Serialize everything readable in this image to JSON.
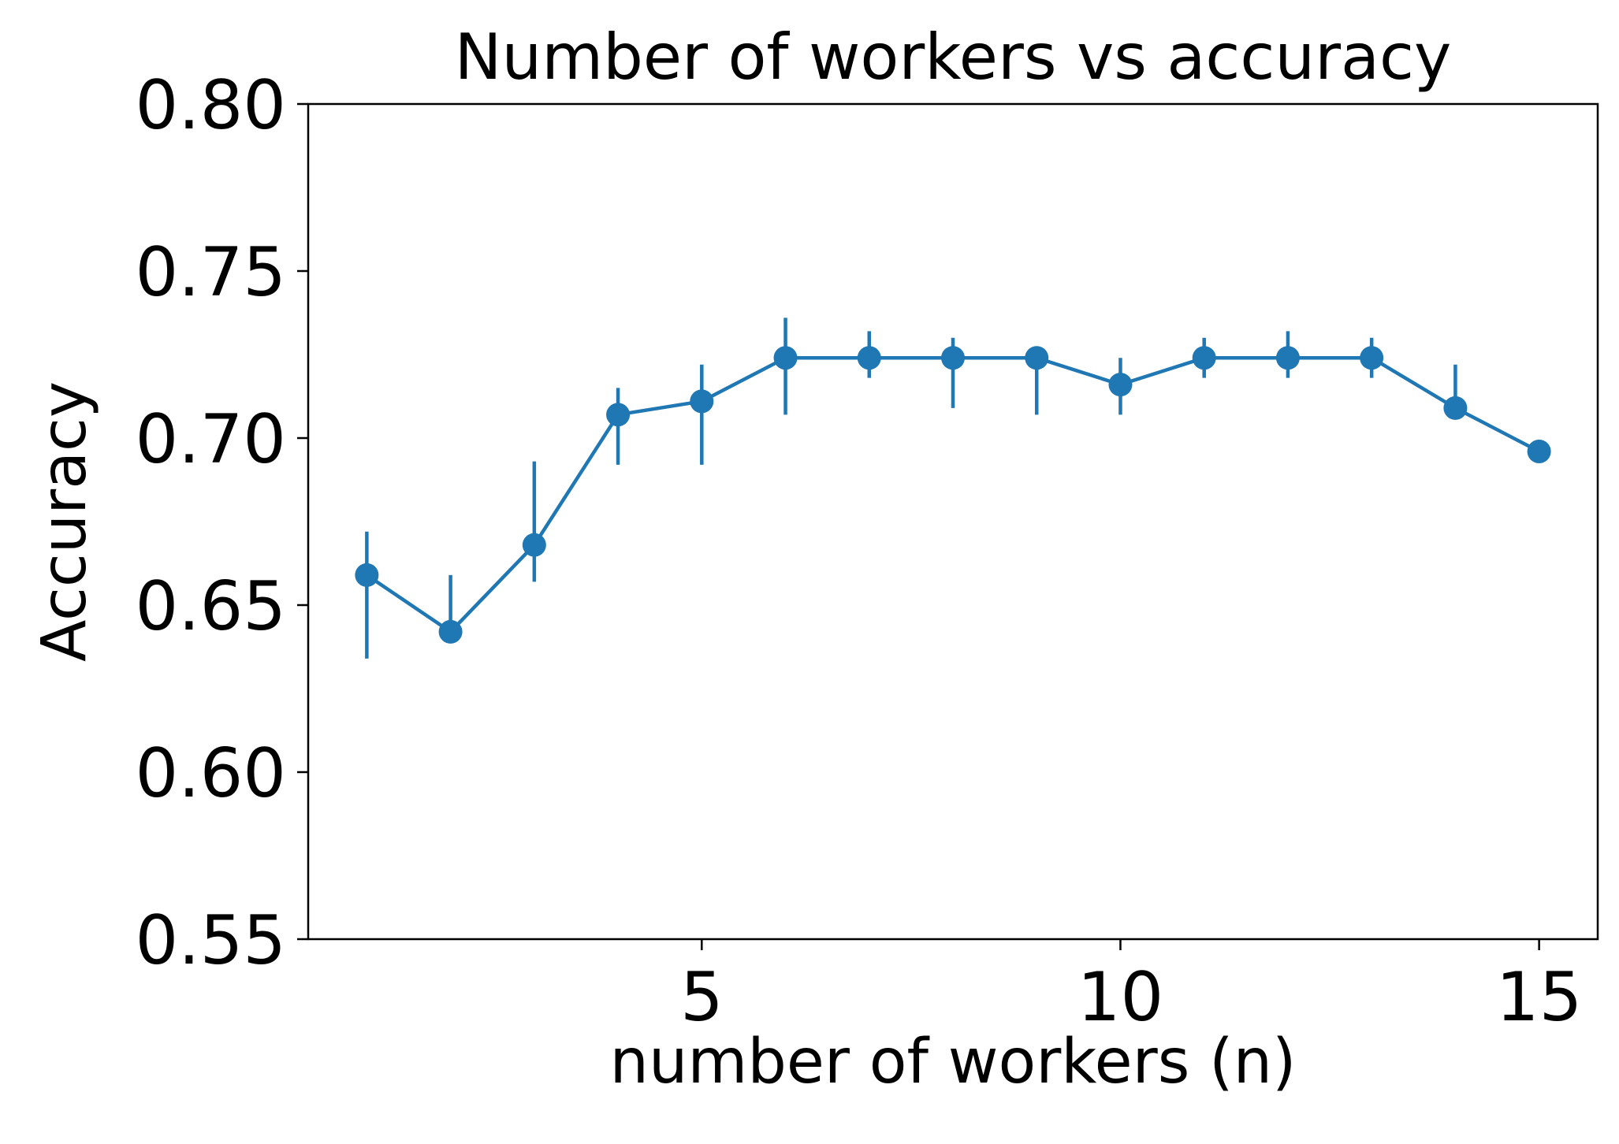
{
  "chart_data": {
    "type": "line",
    "title": "Number of workers vs accuracy",
    "xlabel": "number of workers (n)",
    "ylabel": "Accuracy",
    "xlim": [
      0.3,
      15.7
    ],
    "ylim": [
      0.55,
      0.8
    ],
    "x_ticks": [
      5,
      10,
      15
    ],
    "x_tick_labels": [
      "5",
      "10",
      "15"
    ],
    "y_ticks": [
      0.55,
      0.6,
      0.65,
      0.7,
      0.75,
      0.8
    ],
    "y_tick_labels": [
      "0.55",
      "0.60",
      "0.65",
      "0.70",
      "0.75",
      "0.80"
    ],
    "grid": false,
    "series": [
      {
        "color": "#1f77b4",
        "marker": "circle",
        "points": [
          {
            "x": 1,
            "y": 0.659,
            "ylow": 0.634,
            "yhigh": 0.672
          },
          {
            "x": 2,
            "y": 0.642,
            "ylow": 0.641,
            "yhigh": 0.659
          },
          {
            "x": 3,
            "y": 0.668,
            "ylow": 0.657,
            "yhigh": 0.693
          },
          {
            "x": 4,
            "y": 0.707,
            "ylow": 0.692,
            "yhigh": 0.715
          },
          {
            "x": 5,
            "y": 0.711,
            "ylow": 0.692,
            "yhigh": 0.722
          },
          {
            "x": 6,
            "y": 0.724,
            "ylow": 0.707,
            "yhigh": 0.736
          },
          {
            "x": 7,
            "y": 0.724,
            "ylow": 0.718,
            "yhigh": 0.732
          },
          {
            "x": 8,
            "y": 0.724,
            "ylow": 0.709,
            "yhigh": 0.73
          },
          {
            "x": 9,
            "y": 0.724,
            "ylow": 0.707,
            "yhigh": 0.726
          },
          {
            "x": 10,
            "y": 0.716,
            "ylow": 0.707,
            "yhigh": 0.724
          },
          {
            "x": 11,
            "y": 0.724,
            "ylow": 0.718,
            "yhigh": 0.73
          },
          {
            "x": 12,
            "y": 0.724,
            "ylow": 0.718,
            "yhigh": 0.732
          },
          {
            "x": 13,
            "y": 0.724,
            "ylow": 0.718,
            "yhigh": 0.73
          },
          {
            "x": 14,
            "y": 0.709,
            "ylow": 0.707,
            "yhigh": 0.722
          },
          {
            "x": 15,
            "y": 0.696,
            "ylow": 0.696,
            "yhigh": 0.696
          }
        ]
      }
    ]
  }
}
